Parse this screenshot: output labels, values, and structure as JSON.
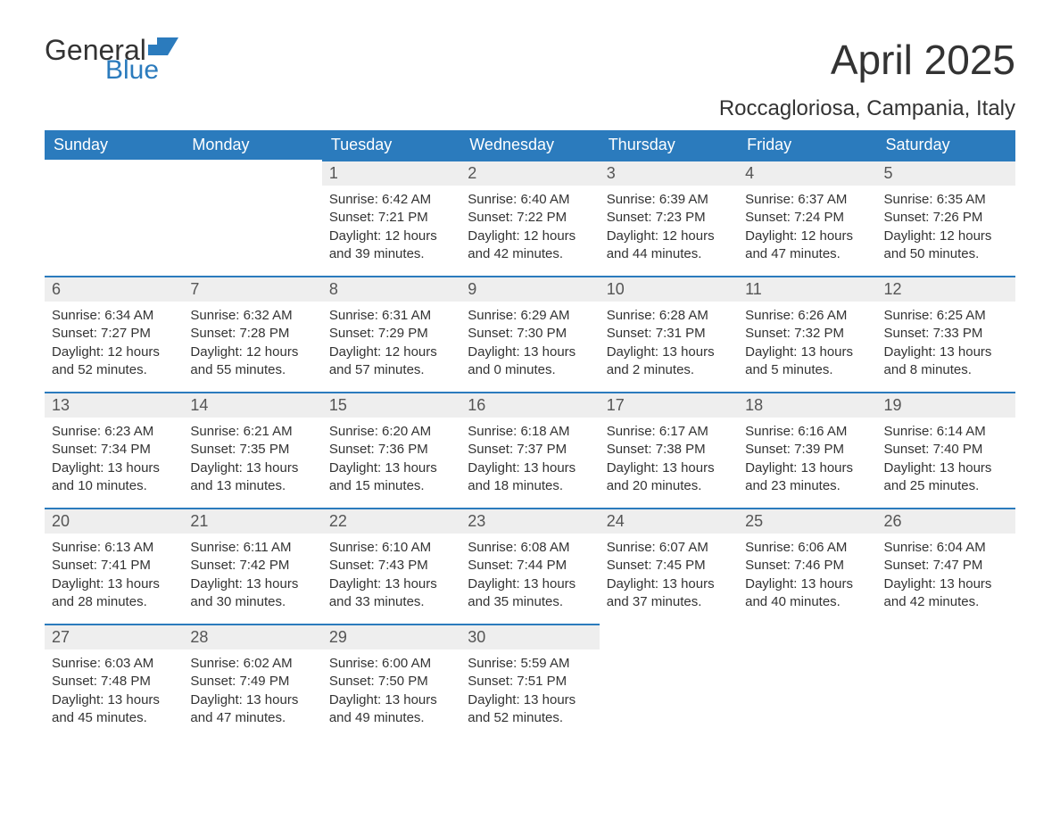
{
  "logo": {
    "general": "General",
    "blue": "Blue"
  },
  "title": "April 2025",
  "location": "Roccagloriosa, Campania, Italy",
  "weekdays": [
    "Sunday",
    "Monday",
    "Tuesday",
    "Wednesday",
    "Thursday",
    "Friday",
    "Saturday"
  ],
  "colors": {
    "accent": "#2b7bbd",
    "header_text": "#ffffff",
    "daynum_bg": "#eeeeee",
    "text": "#333333"
  },
  "weeks": [
    [
      null,
      null,
      {
        "n": "1",
        "sunrise": "Sunrise: 6:42 AM",
        "sunset": "Sunset: 7:21 PM",
        "daylight": "Daylight: 12 hours and 39 minutes."
      },
      {
        "n": "2",
        "sunrise": "Sunrise: 6:40 AM",
        "sunset": "Sunset: 7:22 PM",
        "daylight": "Daylight: 12 hours and 42 minutes."
      },
      {
        "n": "3",
        "sunrise": "Sunrise: 6:39 AM",
        "sunset": "Sunset: 7:23 PM",
        "daylight": "Daylight: 12 hours and 44 minutes."
      },
      {
        "n": "4",
        "sunrise": "Sunrise: 6:37 AM",
        "sunset": "Sunset: 7:24 PM",
        "daylight": "Daylight: 12 hours and 47 minutes."
      },
      {
        "n": "5",
        "sunrise": "Sunrise: 6:35 AM",
        "sunset": "Sunset: 7:26 PM",
        "daylight": "Daylight: 12 hours and 50 minutes."
      }
    ],
    [
      {
        "n": "6",
        "sunrise": "Sunrise: 6:34 AM",
        "sunset": "Sunset: 7:27 PM",
        "daylight": "Daylight: 12 hours and 52 minutes."
      },
      {
        "n": "7",
        "sunrise": "Sunrise: 6:32 AM",
        "sunset": "Sunset: 7:28 PM",
        "daylight": "Daylight: 12 hours and 55 minutes."
      },
      {
        "n": "8",
        "sunrise": "Sunrise: 6:31 AM",
        "sunset": "Sunset: 7:29 PM",
        "daylight": "Daylight: 12 hours and 57 minutes."
      },
      {
        "n": "9",
        "sunrise": "Sunrise: 6:29 AM",
        "sunset": "Sunset: 7:30 PM",
        "daylight": "Daylight: 13 hours and 0 minutes."
      },
      {
        "n": "10",
        "sunrise": "Sunrise: 6:28 AM",
        "sunset": "Sunset: 7:31 PM",
        "daylight": "Daylight: 13 hours and 2 minutes."
      },
      {
        "n": "11",
        "sunrise": "Sunrise: 6:26 AM",
        "sunset": "Sunset: 7:32 PM",
        "daylight": "Daylight: 13 hours and 5 minutes."
      },
      {
        "n": "12",
        "sunrise": "Sunrise: 6:25 AM",
        "sunset": "Sunset: 7:33 PM",
        "daylight": "Daylight: 13 hours and 8 minutes."
      }
    ],
    [
      {
        "n": "13",
        "sunrise": "Sunrise: 6:23 AM",
        "sunset": "Sunset: 7:34 PM",
        "daylight": "Daylight: 13 hours and 10 minutes."
      },
      {
        "n": "14",
        "sunrise": "Sunrise: 6:21 AM",
        "sunset": "Sunset: 7:35 PM",
        "daylight": "Daylight: 13 hours and 13 minutes."
      },
      {
        "n": "15",
        "sunrise": "Sunrise: 6:20 AM",
        "sunset": "Sunset: 7:36 PM",
        "daylight": "Daylight: 13 hours and 15 minutes."
      },
      {
        "n": "16",
        "sunrise": "Sunrise: 6:18 AM",
        "sunset": "Sunset: 7:37 PM",
        "daylight": "Daylight: 13 hours and 18 minutes."
      },
      {
        "n": "17",
        "sunrise": "Sunrise: 6:17 AM",
        "sunset": "Sunset: 7:38 PM",
        "daylight": "Daylight: 13 hours and 20 minutes."
      },
      {
        "n": "18",
        "sunrise": "Sunrise: 6:16 AM",
        "sunset": "Sunset: 7:39 PM",
        "daylight": "Daylight: 13 hours and 23 minutes."
      },
      {
        "n": "19",
        "sunrise": "Sunrise: 6:14 AM",
        "sunset": "Sunset: 7:40 PM",
        "daylight": "Daylight: 13 hours and 25 minutes."
      }
    ],
    [
      {
        "n": "20",
        "sunrise": "Sunrise: 6:13 AM",
        "sunset": "Sunset: 7:41 PM",
        "daylight": "Daylight: 13 hours and 28 minutes."
      },
      {
        "n": "21",
        "sunrise": "Sunrise: 6:11 AM",
        "sunset": "Sunset: 7:42 PM",
        "daylight": "Daylight: 13 hours and 30 minutes."
      },
      {
        "n": "22",
        "sunrise": "Sunrise: 6:10 AM",
        "sunset": "Sunset: 7:43 PM",
        "daylight": "Daylight: 13 hours and 33 minutes."
      },
      {
        "n": "23",
        "sunrise": "Sunrise: 6:08 AM",
        "sunset": "Sunset: 7:44 PM",
        "daylight": "Daylight: 13 hours and 35 minutes."
      },
      {
        "n": "24",
        "sunrise": "Sunrise: 6:07 AM",
        "sunset": "Sunset: 7:45 PM",
        "daylight": "Daylight: 13 hours and 37 minutes."
      },
      {
        "n": "25",
        "sunrise": "Sunrise: 6:06 AM",
        "sunset": "Sunset: 7:46 PM",
        "daylight": "Daylight: 13 hours and 40 minutes."
      },
      {
        "n": "26",
        "sunrise": "Sunrise: 6:04 AM",
        "sunset": "Sunset: 7:47 PM",
        "daylight": "Daylight: 13 hours and 42 minutes."
      }
    ],
    [
      {
        "n": "27",
        "sunrise": "Sunrise: 6:03 AM",
        "sunset": "Sunset: 7:48 PM",
        "daylight": "Daylight: 13 hours and 45 minutes."
      },
      {
        "n": "28",
        "sunrise": "Sunrise: 6:02 AM",
        "sunset": "Sunset: 7:49 PM",
        "daylight": "Daylight: 13 hours and 47 minutes."
      },
      {
        "n": "29",
        "sunrise": "Sunrise: 6:00 AM",
        "sunset": "Sunset: 7:50 PM",
        "daylight": "Daylight: 13 hours and 49 minutes."
      },
      {
        "n": "30",
        "sunrise": "Sunrise: 5:59 AM",
        "sunset": "Sunset: 7:51 PM",
        "daylight": "Daylight: 13 hours and 52 minutes."
      },
      null,
      null,
      null
    ]
  ]
}
